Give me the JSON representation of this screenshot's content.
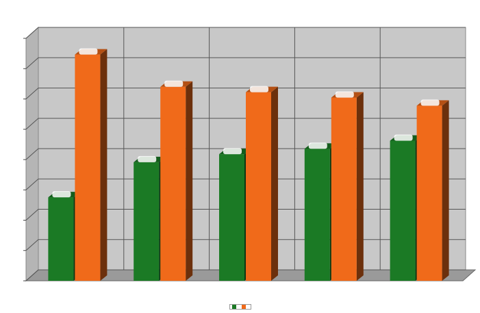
{
  "chart_data": {
    "type": "bar",
    "title": "",
    "categories": [
      "",
      "",
      "",
      "",
      ""
    ],
    "series": [
      {
        "values": [
          31,
          44,
          47,
          49,
          52
        ],
        "color": "#1b7a25"
      },
      {
        "values": [
          84,
          72,
          70,
          68,
          65
        ],
        "color": "#f06a1a"
      }
    ],
    "ylim": [
      0,
      90
    ],
    "grid": true,
    "view": "3d",
    "legend": "bottom",
    "colors": {
      "wall": "#c8c8c8",
      "floor": "#9a9a9a",
      "gridline": "#555555",
      "data_label_bg": "#ffffff"
    }
  }
}
